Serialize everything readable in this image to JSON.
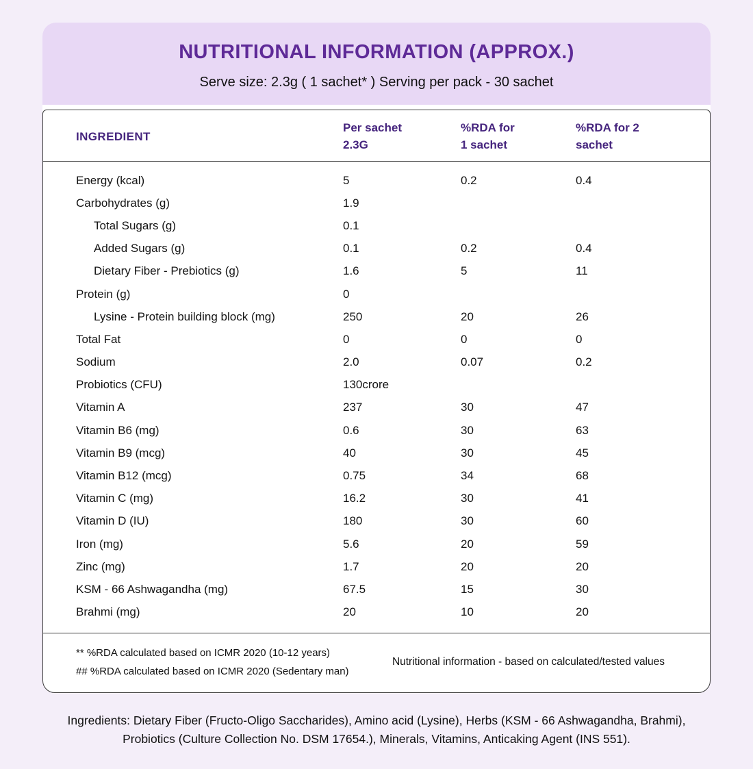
{
  "header": {
    "title": "NUTRITIONAL INFORMATION (APPROX.)",
    "subtitle": "Serve size: 2.3g ( 1 sachet* ) Serving per pack - 30 sachet"
  },
  "table": {
    "columns": [
      "INGREDIENT",
      "Per sachet\n2.3G",
      "%RDA for\n1 sachet",
      "%RDA for 2\nsachet"
    ],
    "rows": [
      {
        "name": "Energy (kcal)",
        "per_sachet": "5",
        "rda_1_sachet": "0.2",
        "rda_2_sachet": "0.4",
        "indent": false
      },
      {
        "name": "Carbohydrates (g)",
        "per_sachet": "1.9",
        "rda_1_sachet": "",
        "rda_2_sachet": "",
        "indent": false
      },
      {
        "name": "Total Sugars (g)",
        "per_sachet": "0.1",
        "rda_1_sachet": "",
        "rda_2_sachet": "",
        "indent": true
      },
      {
        "name": "Added Sugars (g)",
        "per_sachet": "0.1",
        "rda_1_sachet": "0.2",
        "rda_2_sachet": "0.4",
        "indent": true
      },
      {
        "name": "Dietary Fiber - Prebiotics (g)",
        "per_sachet": "1.6",
        "rda_1_sachet": "5",
        "rda_2_sachet": "11",
        "indent": true
      },
      {
        "name": "Protein (g)",
        "per_sachet": "0",
        "rda_1_sachet": "",
        "rda_2_sachet": "",
        "indent": false
      },
      {
        "name": "Lysine - Protein building block (mg)",
        "per_sachet": "250",
        "rda_1_sachet": "20",
        "rda_2_sachet": "26",
        "indent": true
      },
      {
        "name": "Total Fat",
        "per_sachet": "0",
        "rda_1_sachet": "0",
        "rda_2_sachet": "0",
        "indent": false
      },
      {
        "name": "Sodium",
        "per_sachet": "2.0",
        "rda_1_sachet": "0.07",
        "rda_2_sachet": "0.2",
        "indent": false
      },
      {
        "name": "Probiotics (CFU)",
        "per_sachet": "130crore",
        "rda_1_sachet": "",
        "rda_2_sachet": "",
        "indent": false
      },
      {
        "name": "Vitamin A",
        "per_sachet": "237",
        "rda_1_sachet": "30",
        "rda_2_sachet": "47",
        "indent": false
      },
      {
        "name": "Vitamin B6 (mg)",
        "per_sachet": "0.6",
        "rda_1_sachet": "30",
        "rda_2_sachet": "63",
        "indent": false
      },
      {
        "name": "Vitamin B9 (mcg)",
        "per_sachet": "40",
        "rda_1_sachet": "30",
        "rda_2_sachet": "45",
        "indent": false
      },
      {
        "name": "Vitamin B12 (mcg)",
        "per_sachet": "0.75",
        "rda_1_sachet": "34",
        "rda_2_sachet": "68",
        "indent": false
      },
      {
        "name": "Vitamin C (mg)",
        "per_sachet": "16.2",
        "rda_1_sachet": "30",
        "rda_2_sachet": "41",
        "indent": false
      },
      {
        "name": "Vitamin D (IU)",
        "per_sachet": "180",
        "rda_1_sachet": "30",
        "rda_2_sachet": "60",
        "indent": false
      },
      {
        "name": "Iron (mg)",
        "per_sachet": "5.6",
        "rda_1_sachet": "20",
        "rda_2_sachet": "59",
        "indent": false
      },
      {
        "name": "Zinc (mg)",
        "per_sachet": "1.7",
        "rda_1_sachet": "20",
        "rda_2_sachet": "20",
        "indent": false
      },
      {
        "name": "KSM - 66 Ashwagandha (mg)",
        "per_sachet": "67.5",
        "rda_1_sachet": "15",
        "rda_2_sachet": "30",
        "indent": false
      },
      {
        "name": "Brahmi (mg)",
        "per_sachet": "20",
        "rda_1_sachet": "10",
        "rda_2_sachet": "20",
        "indent": false
      }
    ]
  },
  "footnotes": {
    "left_line_1": "** %RDA calculated based on ICMR 2020 (10-12 years)",
    "left_line_2": "## %RDA calculated based on ICMR 2020 (Sedentary man)",
    "right": "Nutritional information - based on calculated/tested values"
  },
  "ingredients_text": "Ingredients: Dietary Fiber (Fructo-Oligo Saccharides), Amino acid (Lysine), Herbs (KSM - 66 Ashwagandha, Brahmi), Probiotics (Culture Collection No. DSM 17654.), Minerals, Vitamins, Anticaking Agent (INS 551).",
  "colors": {
    "page_background": "#f4eef9",
    "band_background": "#e8d8f5",
    "title_purple": "#5e2a97",
    "column_header_purple": "#46257e",
    "table_border": "#3c3c3c"
  }
}
